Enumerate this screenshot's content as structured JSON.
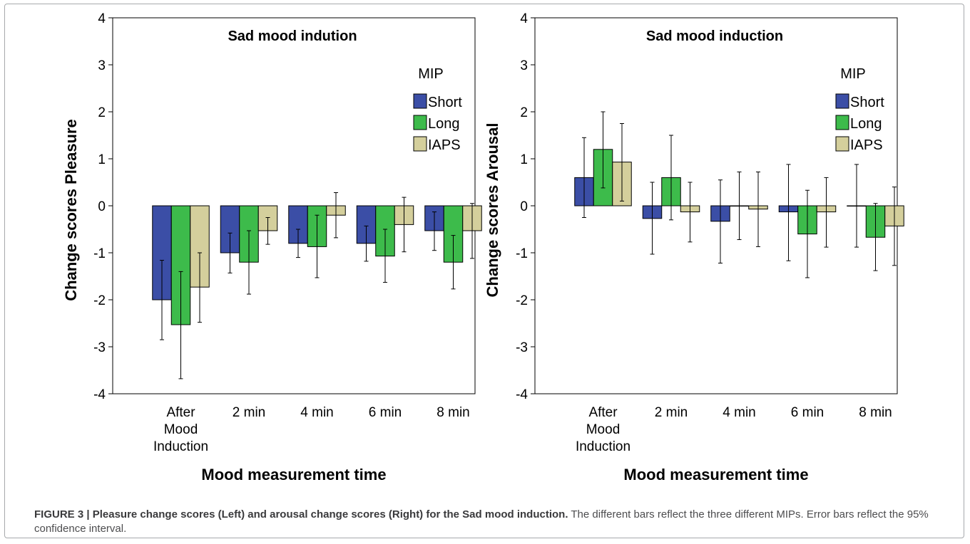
{
  "caption": {
    "label": "FIGURE 3 | Pleasure change scores (Left) and arousal change scores (Right) for the Sad mood induction.",
    "text": " The different bars reflect the three different MIPs. Error bars reflect the 95% confidence interval."
  },
  "legend_title": "MIP",
  "colors": {
    "Short": "#3b4ea6",
    "Long": "#3dbb4b",
    "IAPS": "#d4cf9c"
  },
  "chart_data": [
    {
      "type": "bar",
      "title": "Sad mood indution",
      "xlabel": "Mood measurement time",
      "ylabel": "Change scores Pleasure",
      "ylim": [
        -4,
        4
      ],
      "yticks": [
        4,
        3,
        2,
        1,
        0,
        -1,
        -2,
        -3,
        -4
      ],
      "categories": [
        "After Mood Induction",
        "2 min",
        "4 min",
        "6 min",
        "8 min"
      ],
      "legend": "top-right",
      "series": [
        {
          "name": "Short",
          "values": [
            -2.0,
            -1.0,
            -0.8,
            -0.8,
            -0.53
          ],
          "ci_low": [
            -2.85,
            -1.43,
            -1.1,
            -1.18,
            -0.95
          ],
          "ci_high": [
            -1.16,
            -0.58,
            -0.5,
            -0.43,
            -0.13
          ]
        },
        {
          "name": "Long",
          "values": [
            -2.53,
            -1.2,
            -0.87,
            -1.07,
            -1.2
          ],
          "ci_low": [
            -3.68,
            -1.88,
            -1.53,
            -1.63,
            -1.77
          ],
          "ci_high": [
            -1.4,
            -0.53,
            -0.2,
            -0.5,
            -0.63
          ]
        },
        {
          "name": "IAPS",
          "values": [
            -1.73,
            -0.53,
            -0.2,
            -0.4,
            -0.53
          ],
          "ci_low": [
            -2.48,
            -0.82,
            -0.68,
            -0.98,
            -1.12
          ],
          "ci_high": [
            -1.0,
            -0.25,
            0.28,
            0.18,
            0.05
          ]
        }
      ]
    },
    {
      "type": "bar",
      "title": "Sad mood induction",
      "xlabel": "Mood measurement time",
      "ylabel": "Change scores Arousal",
      "ylim": [
        -4,
        4
      ],
      "yticks": [
        4,
        3,
        2,
        1,
        0,
        -1,
        -2,
        -3,
        -4
      ],
      "categories": [
        "After Mood Induction",
        "2 min",
        "4 min",
        "6 min",
        "8 min"
      ],
      "legend": "top-right",
      "series": [
        {
          "name": "Short",
          "values": [
            0.6,
            -0.27,
            -0.33,
            -0.13,
            0.0
          ],
          "ci_low": [
            -0.25,
            -1.03,
            -1.22,
            -1.17,
            -0.88
          ],
          "ci_high": [
            1.45,
            0.5,
            0.55,
            0.88,
            0.88
          ]
        },
        {
          "name": "Long",
          "values": [
            1.2,
            0.6,
            0.0,
            -0.6,
            -0.67
          ],
          "ci_low": [
            0.38,
            -0.3,
            -0.72,
            -1.53,
            -1.38
          ],
          "ci_high": [
            2.0,
            1.5,
            0.72,
            0.33,
            0.05
          ]
        },
        {
          "name": "IAPS",
          "values": [
            0.93,
            -0.13,
            -0.07,
            -0.13,
            -0.43
          ],
          "ci_low": [
            0.1,
            -0.77,
            -0.87,
            -0.88,
            -1.27
          ],
          "ci_high": [
            1.75,
            0.5,
            0.72,
            0.6,
            0.4
          ]
        }
      ]
    }
  ]
}
